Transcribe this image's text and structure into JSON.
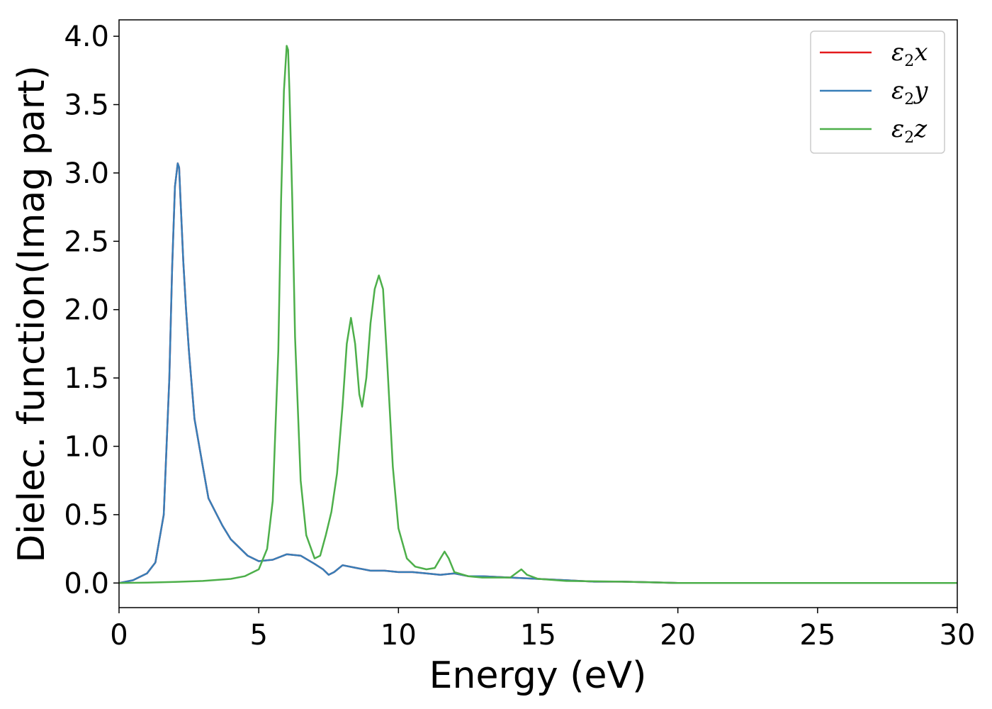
{
  "chart_data": {
    "type": "line",
    "title": "",
    "xlabel": "Energy (eV)",
    "ylabel": "Dielec. function(Imag part)",
    "xlim": [
      0,
      30
    ],
    "ylim": [
      -0.18,
      4.12
    ],
    "xticks": [
      0,
      5,
      10,
      15,
      20,
      25,
      30
    ],
    "xtick_labels": [
      "0",
      "5",
      "10",
      "15",
      "20",
      "25",
      "30"
    ],
    "yticks": [
      0.0,
      0.5,
      1.0,
      1.5,
      2.0,
      2.5,
      3.0,
      3.5,
      4.0
    ],
    "ytick_labels": [
      "0.0",
      "0.5",
      "1.0",
      "1.5",
      "2.0",
      "2.5",
      "3.0",
      "3.5",
      "4.0"
    ],
    "grid": false,
    "legend_position": "top-right",
    "series": [
      {
        "name": "ε2x",
        "symbol": "ε",
        "sub": "2",
        "suffix": "x",
        "color": "#e41a1c",
        "x": [
          0,
          0.5,
          1.0,
          1.3,
          1.6,
          1.8,
          1.9,
          2.0,
          2.1,
          2.15,
          2.2,
          2.3,
          2.4,
          2.5,
          2.7,
          3.0,
          3.2,
          3.5,
          3.7,
          4.0,
          4.3,
          4.6,
          5.0,
          5.5,
          6.0,
          6.5,
          7.0,
          7.3,
          7.5,
          7.7,
          8.0,
          8.5,
          9.0,
          9.5,
          10.0,
          10.5,
          11.0,
          11.5,
          12.0,
          12.5,
          13.0,
          14.0,
          15.0,
          16.0,
          17.0,
          18.0,
          19.0,
          20.0,
          22.0,
          25.0,
          30.0
        ],
        "y": [
          0.0,
          0.02,
          0.07,
          0.15,
          0.5,
          1.5,
          2.3,
          2.9,
          3.07,
          3.04,
          2.8,
          2.35,
          2.0,
          1.7,
          1.2,
          0.85,
          0.62,
          0.5,
          0.42,
          0.32,
          0.26,
          0.2,
          0.16,
          0.17,
          0.21,
          0.2,
          0.14,
          0.1,
          0.06,
          0.08,
          0.13,
          0.11,
          0.09,
          0.09,
          0.08,
          0.08,
          0.07,
          0.06,
          0.07,
          0.05,
          0.05,
          0.04,
          0.03,
          0.02,
          0.01,
          0.01,
          0.005,
          0.0,
          0.0,
          0.0,
          0.0
        ]
      },
      {
        "name": "ε2y",
        "symbol": "ε",
        "sub": "2",
        "suffix": "y",
        "color": "#377eb8",
        "x": [
          0,
          0.5,
          1.0,
          1.3,
          1.6,
          1.8,
          1.9,
          2.0,
          2.1,
          2.15,
          2.2,
          2.3,
          2.4,
          2.5,
          2.7,
          3.0,
          3.2,
          3.5,
          3.7,
          4.0,
          4.3,
          4.6,
          5.0,
          5.5,
          6.0,
          6.5,
          7.0,
          7.3,
          7.5,
          7.7,
          8.0,
          8.5,
          9.0,
          9.5,
          10.0,
          10.5,
          11.0,
          11.5,
          12.0,
          12.5,
          13.0,
          14.0,
          15.0,
          16.0,
          17.0,
          18.0,
          19.0,
          20.0,
          22.0,
          25.0,
          30.0
        ],
        "y": [
          0.0,
          0.02,
          0.07,
          0.15,
          0.5,
          1.5,
          2.3,
          2.9,
          3.07,
          3.04,
          2.8,
          2.35,
          2.0,
          1.7,
          1.2,
          0.85,
          0.62,
          0.5,
          0.42,
          0.32,
          0.26,
          0.2,
          0.16,
          0.17,
          0.21,
          0.2,
          0.14,
          0.1,
          0.06,
          0.08,
          0.13,
          0.11,
          0.09,
          0.09,
          0.08,
          0.08,
          0.07,
          0.06,
          0.07,
          0.05,
          0.05,
          0.04,
          0.03,
          0.02,
          0.01,
          0.01,
          0.005,
          0.0,
          0.0,
          0.0,
          0.0
        ]
      },
      {
        "name": "ε2z",
        "symbol": "ε",
        "sub": "2",
        "suffix": "z",
        "color": "#4daf4a",
        "x": [
          0,
          1.0,
          2.0,
          3.0,
          4.0,
          4.5,
          5.0,
          5.3,
          5.5,
          5.7,
          5.8,
          5.9,
          6.0,
          6.05,
          6.1,
          6.2,
          6.3,
          6.5,
          6.7,
          7.0,
          7.2,
          7.4,
          7.6,
          7.8,
          8.0,
          8.15,
          8.3,
          8.45,
          8.6,
          8.7,
          8.85,
          9.0,
          9.15,
          9.3,
          9.45,
          9.6,
          9.8,
          10.0,
          10.3,
          10.6,
          11.0,
          11.3,
          11.5,
          11.65,
          11.8,
          12.0,
          12.5,
          13.0,
          13.5,
          14.0,
          14.2,
          14.4,
          14.6,
          15.0,
          16.0,
          18.0,
          20.0,
          25.0,
          30.0
        ],
        "y": [
          0.0,
          0.003,
          0.008,
          0.015,
          0.03,
          0.05,
          0.1,
          0.25,
          0.6,
          1.7,
          2.8,
          3.6,
          3.93,
          3.9,
          3.6,
          2.8,
          1.8,
          0.75,
          0.35,
          0.18,
          0.2,
          0.35,
          0.52,
          0.8,
          1.3,
          1.75,
          1.94,
          1.75,
          1.38,
          1.29,
          1.5,
          1.9,
          2.15,
          2.25,
          2.15,
          1.6,
          0.85,
          0.4,
          0.18,
          0.12,
          0.1,
          0.11,
          0.18,
          0.23,
          0.18,
          0.08,
          0.05,
          0.04,
          0.04,
          0.04,
          0.07,
          0.1,
          0.06,
          0.03,
          0.015,
          0.01,
          0.0,
          0.0,
          0.0
        ]
      }
    ]
  }
}
